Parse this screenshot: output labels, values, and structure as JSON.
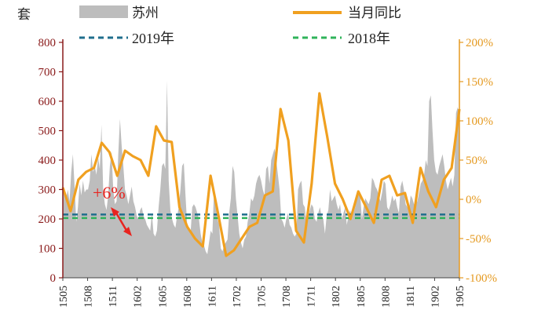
{
  "chart_data": {
    "type": "area",
    "left_axis": {
      "unit_label": "套",
      "ylim": [
        0,
        800
      ],
      "ticks": [
        "0",
        "100",
        "200",
        "300",
        "400",
        "500",
        "600",
        "700",
        "800"
      ]
    },
    "right_axis": {
      "ylim": [
        -100,
        200
      ],
      "ticks": [
        "-100%",
        "-50%",
        "0%",
        "50%",
        "100%",
        "150%",
        "200%"
      ]
    },
    "x_ticks": [
      "1505",
      "1508",
      "1511",
      "1602",
      "1605",
      "1608",
      "1611",
      "1702",
      "1705",
      "1708",
      "1711",
      "1802",
      "1805",
      "1808",
      "1811",
      "1902",
      "1905"
    ],
    "legend": {
      "suzhou": "苏州",
      "yoy": "当月同比",
      "y2019": "2019年",
      "y2018": "2018年"
    },
    "annotation": "+6%",
    "reference_lines": {
      "y2019": 215,
      "y2018": 203
    },
    "colors": {
      "area": "#bdbdbd",
      "yoy": "#f0a020",
      "y2019": "#1f6e8c",
      "y2018": "#2fb35a",
      "left_axis": "#8a1a1a",
      "right_axis": "#e59a21",
      "annotation": "#e8241f"
    },
    "series": [
      {
        "name": "苏州",
        "axis": "left",
        "values": [
          300,
          290,
          270,
          300,
          260,
          360,
          420,
          310,
          190,
          240,
          320,
          280,
          330,
          290,
          300,
          300,
          330,
          420,
          360,
          380,
          350,
          410,
          370,
          520,
          300,
          250,
          230,
          280,
          380,
          430,
          300,
          250,
          260,
          420,
          540,
          450,
          380,
          300,
          280,
          250,
          280,
          310,
          260,
          240,
          210,
          200,
          230,
          240,
          210,
          200,
          180,
          170,
          160,
          220,
          150,
          140,
          160,
          240,
          300,
          380,
          390,
          370,
          670,
          330,
          230,
          200,
          180,
          170,
          210,
          240,
          300,
          380,
          390,
          280,
          180,
          160,
          150,
          240,
          250,
          240,
          220,
          200,
          150,
          120,
          110,
          90,
          80,
          120,
          160,
          150,
          300,
          250,
          200,
          180,
          100,
          90,
          110,
          120,
          130,
          220,
          270,
          380,
          360,
          270,
          210,
          150,
          120,
          100,
          130,
          140,
          190,
          220,
          270,
          260,
          280,
          320,
          340,
          350,
          330,
          300,
          280,
          370,
          380,
          320,
          400,
          420,
          440,
          400,
          350,
          300,
          200,
          190,
          170,
          200,
          220,
          180,
          170,
          150,
          140,
          150,
          300,
          320,
          330,
          250,
          240,
          180,
          200,
          230,
          250,
          240,
          200,
          190,
          220,
          240,
          210,
          200,
          150,
          210,
          230,
          300,
          260,
          270,
          280,
          250,
          230,
          250,
          200,
          220,
          240,
          180,
          210,
          230,
          200,
          220,
          240,
          270,
          290,
          280,
          200,
          240,
          270,
          260,
          250,
          270,
          340,
          330,
          310,
          300,
          280,
          260,
          290,
          330,
          320,
          240,
          230,
          250,
          280,
          260,
          270,
          240,
          220,
          310,
          330,
          300,
          250,
          240,
          230,
          280,
          270,
          250,
          250,
          260,
          290,
          320,
          330,
          350,
          400,
          380,
          600,
          620,
          500,
          400,
          360,
          350,
          380,
          400,
          420,
          380,
          330,
          300,
          320,
          340,
          310,
          350,
          560,
          580,
          550
        ],
        "x_start": 1505,
        "x_step_months": 0.25
      },
      {
        "name": "当月同比",
        "axis": "right",
        "points": [
          [
            "1505",
            15
          ],
          [
            "1506",
            -15
          ],
          [
            "1507",
            25
          ],
          [
            "1508",
            35
          ],
          [
            "1509",
            40
          ],
          [
            "1510",
            72
          ],
          [
            "1511",
            60
          ],
          [
            "1512",
            30
          ],
          [
            "1601",
            62
          ],
          [
            "1602",
            55
          ],
          [
            "1603",
            50
          ],
          [
            "1604",
            30
          ],
          [
            "1605",
            93
          ],
          [
            "1606",
            75
          ],
          [
            "1607",
            73
          ],
          [
            "1608",
            -10
          ],
          [
            "1609",
            -35
          ],
          [
            "1610",
            -50
          ],
          [
            "1611",
            -60
          ],
          [
            "1612",
            30
          ],
          [
            "1701",
            -20
          ],
          [
            "1702",
            -72
          ],
          [
            "1703",
            -65
          ],
          [
            "1704",
            -50
          ],
          [
            "1705",
            -35
          ],
          [
            "1706",
            -30
          ],
          [
            "1707",
            5
          ],
          [
            "1708",
            10
          ],
          [
            "1709",
            115
          ],
          [
            "1710",
            75
          ],
          [
            "1711",
            -40
          ],
          [
            "1712",
            -55
          ],
          [
            "1801",
            20
          ],
          [
            "1802",
            135
          ],
          [
            "1803",
            80
          ],
          [
            "1804",
            20
          ],
          [
            "1805",
            0
          ],
          [
            "1806",
            -25
          ],
          [
            "1807",
            10
          ],
          [
            "1808",
            -10
          ],
          [
            "1809",
            -30
          ],
          [
            "1810",
            25
          ],
          [
            "1811",
            30
          ],
          [
            "1812",
            5
          ],
          [
            "1901",
            8
          ],
          [
            "1902",
            -30
          ],
          [
            "1903",
            40
          ],
          [
            "1904",
            10
          ],
          [
            "1905",
            -10
          ],
          [
            "1905b",
            25
          ],
          [
            "1905c",
            40
          ],
          [
            "1905d",
            115
          ]
        ]
      }
    ]
  }
}
